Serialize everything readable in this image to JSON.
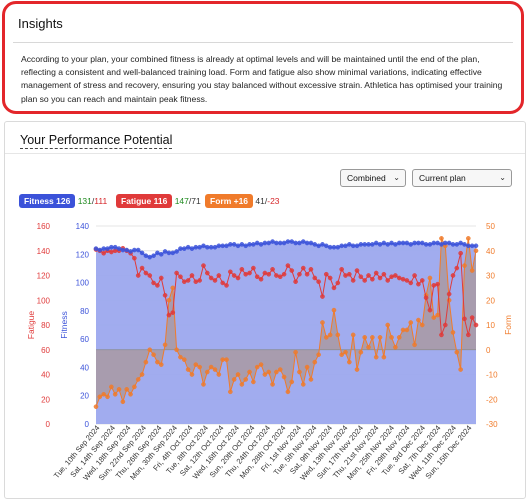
{
  "insights": {
    "title": "Insights",
    "body": "According to your plan, your combined fitness is already at optimal levels and will be maintained until the end of the plan, reflecting a consistent and well-balanced training load. Form and fatigue also show minimal variations, indicating effective management of stress and recovery, ensuring you stay balanced without excessive strain. Athletica has optimised your training plan so you can reach and maintain peak fitness."
  },
  "performance": {
    "title": "Your Performance Potential",
    "mode_select": {
      "value": "Combined"
    },
    "plan_select": {
      "value": "Current plan"
    },
    "legend": {
      "fitness_badge": "Fitness 126",
      "fitness_range_a": "131",
      "fitness_range_sep": "/",
      "fitness_range_b": "111",
      "fatigue_badge": "Fatigue 116",
      "fatigue_range_a": "147",
      "fatigue_range_sep": "/",
      "fatigue_range_b": "71",
      "form_badge": "Form +16",
      "form_range_a": "41",
      "form_range_sep": "/",
      "form_range_b": "-23"
    }
  },
  "colors": {
    "fitness": "#3b52d9",
    "fatigue": "#e03a3a",
    "form": "#f07b2b",
    "fitness_fill": "#9ca8ee",
    "form_fill": "#a99aa6"
  },
  "chart_data": {
    "type": "line",
    "axes": {
      "fatigue": {
        "label": "Fatigue",
        "ticks": [
          0,
          20,
          40,
          60,
          80,
          100,
          120,
          140,
          160
        ],
        "ylim": [
          0,
          160
        ]
      },
      "fitness": {
        "label": "Fitness",
        "ticks": [
          0,
          20,
          40,
          60,
          80,
          100,
          120,
          140
        ],
        "ylim": [
          0,
          140
        ]
      },
      "form": {
        "label": "Form",
        "ticks": [
          -30,
          -20,
          -10,
          0,
          10,
          20,
          30,
          40,
          50
        ],
        "ylim": [
          -30,
          50
        ]
      }
    },
    "x_ticks": [
      "Tue, 10th Sep 2024",
      "Sat, 14th Sep 2024",
      "Wed, 18th Sep 2024",
      "Sun, 22nd Sep 2024",
      "Thu, 26th Sep 2024",
      "Mon, 30th Sep 2024",
      "Fri, 4th Oct 2024",
      "Tue, 8th Oct 2024",
      "Sat, 12th Oct 2024",
      "Wed, 16th Oct 2024",
      "Sun, 20th Oct 2024",
      "Thu, 24th Oct 2024",
      "Mon, 28th Oct 2024",
      "Fri, 1st Nov 2024",
      "Tue, 5th Nov 2024",
      "Sat, 9th Nov 2024",
      "Wed, 13th Nov 2024",
      "Sun, 17th Nov 2024",
      "Thu, 21st Nov 2024",
      "Mon, 25th Nov 2024",
      "Fri, 29th Nov 2024",
      "Tue, 3rd Dec 2024",
      "Sat, 7th Dec 2024",
      "Wed, 11th Dec 2024",
      "Sun, 15th Dec 2024"
    ],
    "series": [
      {
        "name": "Fitness",
        "axis": "fitness",
        "values": [
          124,
          123,
          124,
          124,
          125,
          125,
          124,
          123,
          123,
          122,
          123,
          123,
          121,
          119,
          118,
          119,
          121,
          120,
          122,
          121,
          121,
          122,
          124,
          124,
          125,
          124,
          125,
          125,
          126,
          125,
          125,
          125,
          126,
          126,
          126,
          127,
          127,
          126,
          127,
          126,
          127,
          127,
          128,
          127,
          128,
          128,
          129,
          128,
          128,
          128,
          129,
          129,
          128,
          128,
          129,
          128,
          128,
          127,
          126,
          127,
          126,
          125,
          125,
          125,
          126,
          126,
          127,
          126,
          126,
          127,
          127,
          127,
          127,
          128,
          127,
          128,
          127,
          128,
          127,
          128,
          128,
          128,
          127,
          128,
          128,
          128,
          127,
          127,
          128,
          128,
          127,
          128,
          128,
          127,
          127,
          128,
          127,
          126,
          126,
          126
        ]
      },
      {
        "name": "Fatigue",
        "axis": "fatigue",
        "values": [
          141,
          140,
          138,
          140,
          139,
          140,
          140,
          142,
          140,
          138,
          134,
          120,
          126,
          122,
          120,
          114,
          112,
          118,
          104,
          88,
          90,
          122,
          119,
          115,
          116,
          120,
          115,
          116,
          128,
          122,
          118,
          116,
          120,
          114,
          112,
          123,
          120,
          118,
          125,
          121,
          122,
          126,
          119,
          117,
          122,
          121,
          125,
          120,
          119,
          121,
          128,
          124,
          115,
          121,
          126,
          121,
          125,
          118,
          115,
          103,
          121,
          118,
          110,
          114,
          125,
          120,
          121,
          116,
          124,
          119,
          116,
          120,
          117,
          122,
          118,
          121,
          116,
          119,
          120,
          118,
          117,
          116,
          114,
          120,
          113,
          116,
          102,
          92,
          112,
          113,
          72,
          80,
          105,
          120,
          126,
          138,
          85,
          72,
          86,
          80
        ]
      },
      {
        "name": "Form",
        "axis": "form",
        "values": [
          -23,
          -19,
          -18,
          -19,
          -15,
          -18,
          -16,
          -21,
          -16,
          -18,
          -15,
          -12,
          -10,
          -5,
          0,
          -2,
          -5,
          -6,
          2,
          20,
          25,
          0,
          -3,
          -4,
          -8,
          -10,
          -6,
          -7,
          -14,
          -9,
          -7,
          -8,
          -10,
          -4,
          -4,
          -17,
          -12,
          -10,
          -14,
          -12,
          -9,
          -13,
          -7,
          -6,
          -10,
          -9,
          -14,
          -9,
          -8,
          -11,
          -17,
          -13,
          -1,
          -9,
          -14,
          -7,
          -12,
          -5,
          -2,
          11,
          5,
          6,
          16,
          6,
          -2,
          -1,
          -5,
          6,
          -8,
          -1,
          5,
          1,
          5,
          -3,
          5,
          -3,
          10,
          5,
          1,
          5,
          8,
          8,
          11,
          2,
          12,
          10,
          22,
          29,
          13,
          14,
          45,
          42,
          20,
          7,
          -1,
          -8,
          34,
          45,
          32,
          40
        ]
      }
    ],
    "highlighted_x_tick": "Sat, 2nd Nov 2024"
  }
}
